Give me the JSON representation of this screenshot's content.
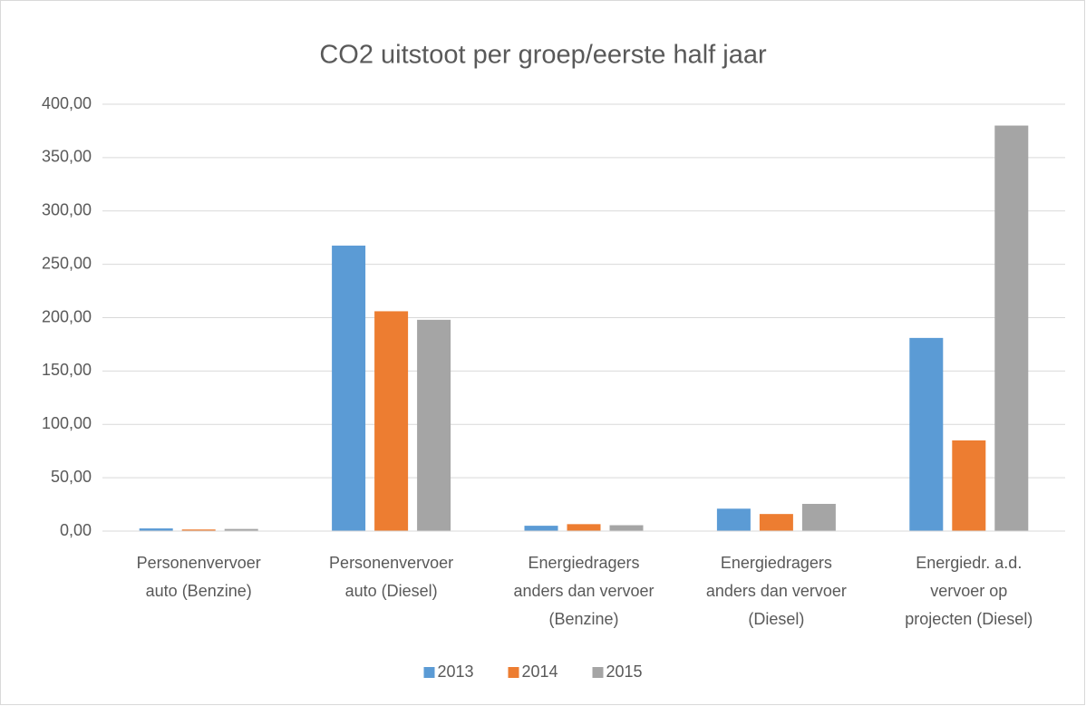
{
  "chart_data": {
    "type": "bar",
    "title": "CO2 uitstoot per groep/eerste half jaar",
    "categories": [
      "Personenvervoer\nauto (Benzine)",
      "Personenvervoer\nauto (Diesel)",
      "Energiedragers\nanders dan vervoer\n(Benzine)",
      "Energiedragers\nanders dan vervoer\n(Diesel)",
      "Energiedr. a.d.\nvervoer op\nprojecten (Diesel)"
    ],
    "series": [
      {
        "name": "2013",
        "color": "#5b9bd5",
        "values": [
          2.5,
          267.5,
          5,
          21,
          181
        ]
      },
      {
        "name": "2014",
        "color": "#ed7d31",
        "values": [
          1.5,
          206,
          6.5,
          16,
          85
        ]
      },
      {
        "name": "2015",
        "color": "#a5a5a5",
        "values": [
          2,
          198,
          5.5,
          25.5,
          380
        ]
      }
    ],
    "ylim": [
      0,
      400
    ],
    "yticks": [
      {
        "value": 0,
        "label": "0,00"
      },
      {
        "value": 50,
        "label": "50,00"
      },
      {
        "value": 100,
        "label": "100,00"
      },
      {
        "value": 150,
        "label": "150,00"
      },
      {
        "value": 200,
        "label": "200,00"
      },
      {
        "value": 250,
        "label": "250,00"
      },
      {
        "value": 300,
        "label": "300,00"
      },
      {
        "value": 350,
        "label": "350,00"
      },
      {
        "value": 400,
        "label": "400,00"
      }
    ],
    "grid": true,
    "legend": "bottom"
  }
}
